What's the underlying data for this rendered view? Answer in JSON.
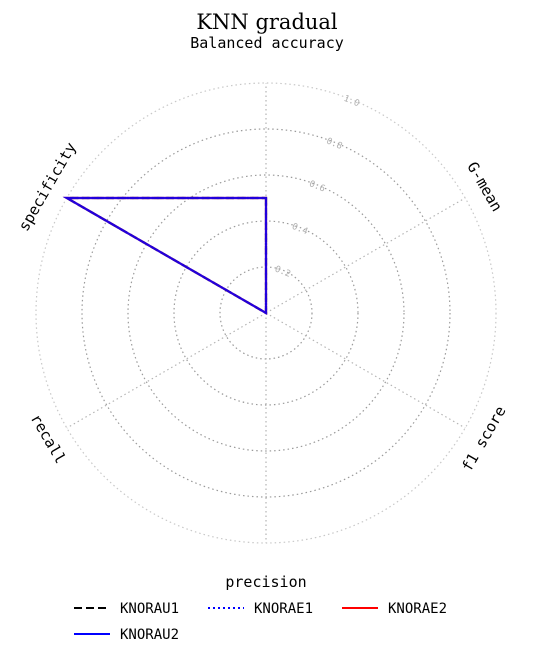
{
  "chart_data": {
    "type": "radar",
    "title": "KNN gradual",
    "subtitle": "Balanced accuracy",
    "axes": [
      "",
      "G-mean",
      "f1 score",
      "",
      "recall",
      "specificity"
    ],
    "rlim": [
      0,
      1.0
    ],
    "rticks": [
      0.2,
      0.4,
      0.6,
      0.8,
      1.0
    ],
    "grid": true,
    "legend_title": "precision",
    "legend_position": "bottom",
    "series": [
      {
        "name": "KNORAU1",
        "color": "#000000",
        "style": "dashed",
        "values": [
          0.5,
          0,
          0,
          0,
          0,
          1.0
        ]
      },
      {
        "name": "KNORAE1",
        "color": "#0000ff",
        "style": "dotted",
        "values": [
          0.5,
          0,
          0,
          0,
          0,
          1.0
        ]
      },
      {
        "name": "KNORAE2",
        "color": "#ff0000",
        "style": "solid",
        "values": [
          0.5,
          0,
          0,
          0,
          0,
          1.0
        ]
      },
      {
        "name": "KNORAU2",
        "color": "#0000ff",
        "style": "solid",
        "values": [
          0.5,
          0,
          0,
          0,
          0,
          1.0
        ]
      }
    ]
  }
}
